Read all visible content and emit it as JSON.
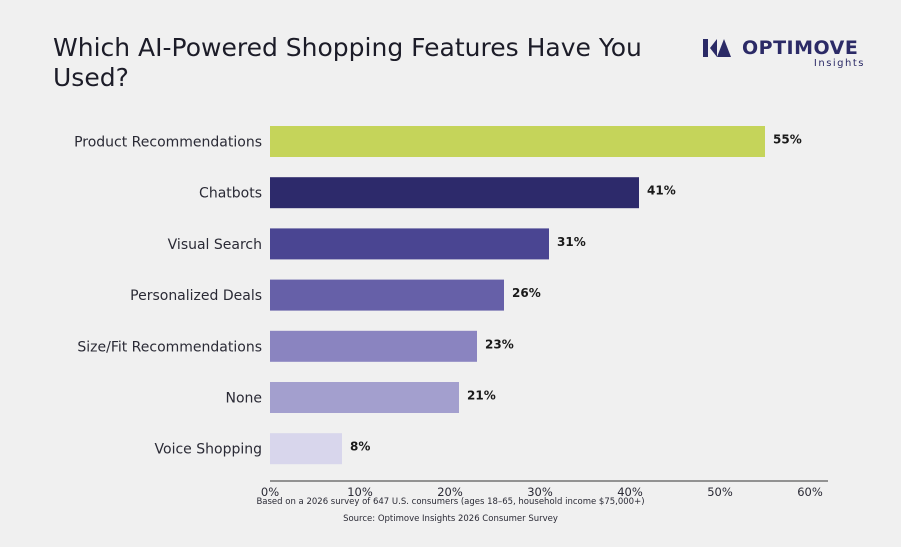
{
  "brand": {
    "name": "OPTIMOVE",
    "sub": "Insights",
    "color": "#2b2a66"
  },
  "footnote": "Based on a 2026 survey of 647 U.S. consumers (ages 18–65, household income $75,000+)",
  "source": "Source: Optimove Insights 2026 Consumer Survey",
  "chart_data": {
    "type": "bar",
    "orientation": "horizontal",
    "title": "Which AI-Powered Shopping Features Have You Used?",
    "categories": [
      "Product Recommendations",
      "Chatbots",
      "Visual Search",
      "Personalized Deals",
      "Size/Fit Recommendations",
      "None",
      "Voice Shopping"
    ],
    "values": [
      55,
      41,
      31,
      26,
      23,
      21,
      8
    ],
    "value_labels": [
      "55%",
      "41%",
      "31%",
      "26%",
      "23%",
      "21%",
      "8%"
    ],
    "colors": [
      "#c5d45a",
      "#2d2a6b",
      "#4a4592",
      "#6660a8",
      "#8a84c0",
      "#a39fce",
      "#d8d6ec"
    ],
    "xlim": [
      0,
      60
    ],
    "x_ticks": [
      0,
      10,
      20,
      30,
      40,
      50,
      60
    ],
    "x_tick_labels": [
      "0%",
      "10%",
      "20%",
      "30%",
      "40%",
      "50%",
      "60%"
    ],
    "grid": false,
    "legend": "none"
  }
}
